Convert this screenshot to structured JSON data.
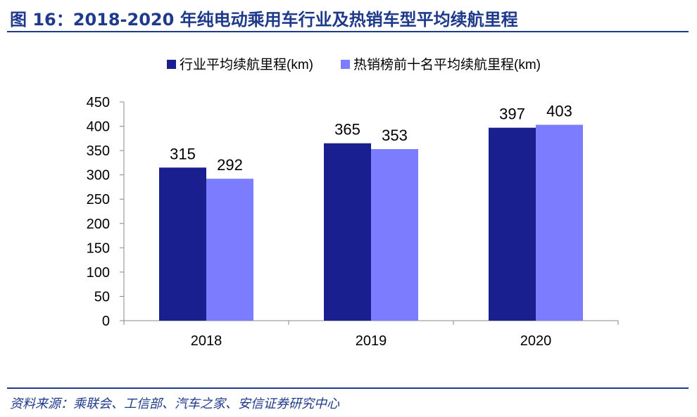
{
  "figure_title": "图 16：2018-2020 年纯电动乘用车行业及热销车型平均续航里程",
  "source_text": "资料来源：乘联会、工信部、汽车之家、安信证券研究中心",
  "colors": {
    "rule": "#1f3a8a",
    "series_1": "#1a1f8f",
    "series_2": "#7b7cff"
  },
  "chart_data": {
    "type": "bar",
    "title": "",
    "xlabel": "",
    "ylabel": "",
    "categories": [
      "2018",
      "2019",
      "2020"
    ],
    "series": [
      {
        "name": "行业平均续航里程(km)",
        "values": [
          315,
          365,
          397
        ]
      },
      {
        "name": "热销榜前十名平均续航里程(km)",
        "values": [
          292,
          353,
          403
        ]
      }
    ],
    "ylim": [
      0,
      450
    ],
    "yticks": [
      0,
      50,
      100,
      150,
      200,
      250,
      300,
      350,
      400,
      450
    ],
    "grid": false,
    "legend_position": "top",
    "data_labels": true
  }
}
